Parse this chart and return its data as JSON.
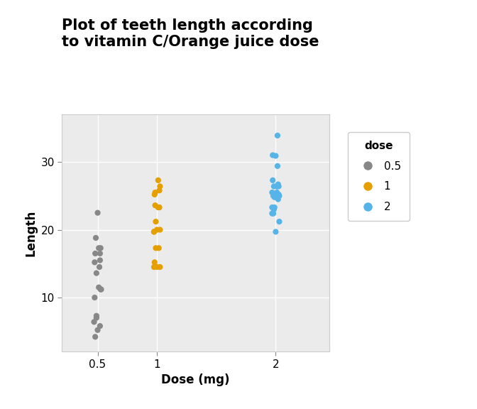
{
  "title": "Plot of teeth length according\nto vitamin C/Orange juice dose",
  "xlabel": "Dose (mg)",
  "ylabel": "Length",
  "legend_title": "dose",
  "legend_labels": [
    "0.5",
    "1",
    "2"
  ],
  "colors": {
    "0.5": "#888888",
    "1": "#E69F00",
    "2": "#56B4E9"
  },
  "dose_0.5": [
    4.2,
    11.5,
    7.3,
    5.8,
    6.4,
    10.0,
    11.2,
    11.2,
    5.2,
    7.0,
    16.5,
    16.5,
    15.2,
    17.3,
    22.5,
    17.3,
    13.6,
    14.5,
    18.8,
    15.5
  ],
  "dose_1": [
    19.7,
    23.3,
    23.6,
    26.4,
    20.0,
    25.2,
    25.8,
    21.2,
    14.5,
    27.3,
    14.5,
    15.2,
    14.5,
    17.3,
    17.3,
    19.7,
    20.0,
    23.3,
    25.5,
    23.3
  ],
  "dose_2": [
    25.5,
    26.4,
    22.4,
    24.5,
    24.8,
    30.9,
    26.4,
    27.3,
    29.4,
    23.0,
    21.2,
    22.4,
    25.0,
    26.4,
    26.7,
    19.7,
    25.0,
    25.2,
    31.0,
    33.9,
    26.4,
    25.0,
    23.3,
    25.5,
    23.3
  ],
  "background_color": "#EBEBEB",
  "ylim": [
    2,
    37
  ],
  "yticks": [
    10,
    20,
    30
  ],
  "x_positions": {
    "0.5": 0.5,
    "1": 1.0,
    "2": 2.0
  },
  "dot_size": 35,
  "jitter_amounts": {
    "0.5": [
      -0.02,
      0.01,
      -0.01,
      0.02,
      -0.03,
      -0.025,
      0.025,
      0.03,
      0.0,
      -0.01,
      -0.02,
      0.02,
      -0.025,
      0.01,
      0.0,
      0.025,
      -0.01,
      0.015,
      -0.015,
      0.02
    ],
    "1": [
      -0.025,
      0.015,
      -0.015,
      0.025,
      0.0,
      -0.02,
      0.02,
      -0.01,
      -0.025,
      0.01,
      0.025,
      -0.02,
      0.0,
      -0.01,
      0.015,
      -0.025,
      0.025,
      0.02,
      -0.015,
      0.01
    ],
    "2": [
      -0.03,
      0.01,
      -0.02,
      0.02,
      -0.01,
      0.0,
      0.025,
      -0.025,
      0.015,
      -0.015,
      0.03,
      -0.03,
      -0.01,
      0.01,
      0.02,
      0.0,
      -0.02,
      0.025,
      -0.025,
      0.015,
      -0.015,
      0.03,
      -0.03,
      0.01,
      -0.01
    ]
  },
  "title_fontsize": 15,
  "axis_label_fontsize": 12,
  "tick_fontsize": 11,
  "legend_fontsize": 11
}
